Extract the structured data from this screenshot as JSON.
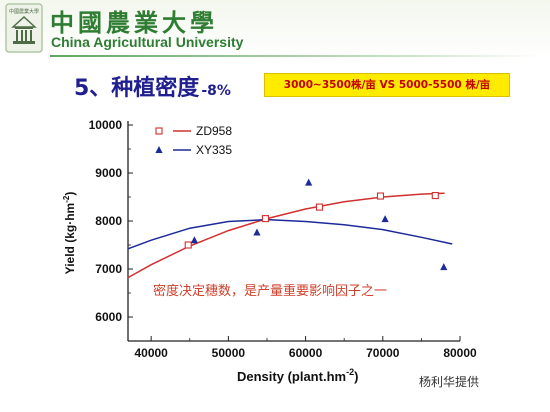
{
  "header": {
    "university_cn": "中國農業大學",
    "university_en": "China Agricultural University"
  },
  "slide": {
    "title": "5、种植密度",
    "title_suffix": "-8%",
    "comparison": "3000~3500株/亩  VS  5000-5500 株/亩",
    "credit": "杨利华提供"
  },
  "colors": {
    "university_green": "#2e7d32",
    "title_blue": "#1f1f8f",
    "highlight_yellow": "#ffeb00",
    "highlight_text_red": "#c40000"
  },
  "chart_data": {
    "type": "scatter",
    "xlabel": "Density (plant.hm",
    "xlabel_superscript": "-2",
    "xlabel_close": ")",
    "ylabel": "Yield (kg·hm",
    "ylabel_superscript": "-2",
    "ylabel_close": ")",
    "xlim": [
      37000,
      80000
    ],
    "ylim": [
      5500,
      10000
    ],
    "xticks": [
      40000,
      50000,
      60000,
      70000,
      80000
    ],
    "yticks": [
      6000,
      7000,
      8000,
      9000,
      10000
    ],
    "legend_position": "top-left",
    "annotation": "密度决定穗数，是产量重要影响因子之一",
    "series": [
      {
        "name": "ZD958",
        "color": "#d1302f",
        "marker": "open-square",
        "x": [
          44800,
          54800,
          61800,
          69700,
          76800
        ],
        "y": [
          7500,
          8050,
          8290,
          8520,
          8530
        ],
        "fit_x": [
          37000,
          40000,
          45000,
          50000,
          55000,
          60000,
          65000,
          70000,
          75000,
          78000
        ],
        "fit_y": [
          6820,
          7090,
          7480,
          7800,
          8050,
          8250,
          8400,
          8500,
          8560,
          8580
        ]
      },
      {
        "name": "XY335",
        "color": "#1c2a9a",
        "marker": "filled-triangle",
        "x": [
          45600,
          53700,
          60400,
          70300,
          77900
        ],
        "y": [
          7600,
          7760,
          8800,
          8040,
          7040
        ],
        "fit_x": [
          37000,
          40000,
          45000,
          50000,
          55000,
          60000,
          65000,
          70000,
          75000,
          79000
        ],
        "fit_y": [
          7420,
          7600,
          7850,
          7990,
          8030,
          7990,
          7920,
          7820,
          7660,
          7520
        ]
      }
    ]
  }
}
